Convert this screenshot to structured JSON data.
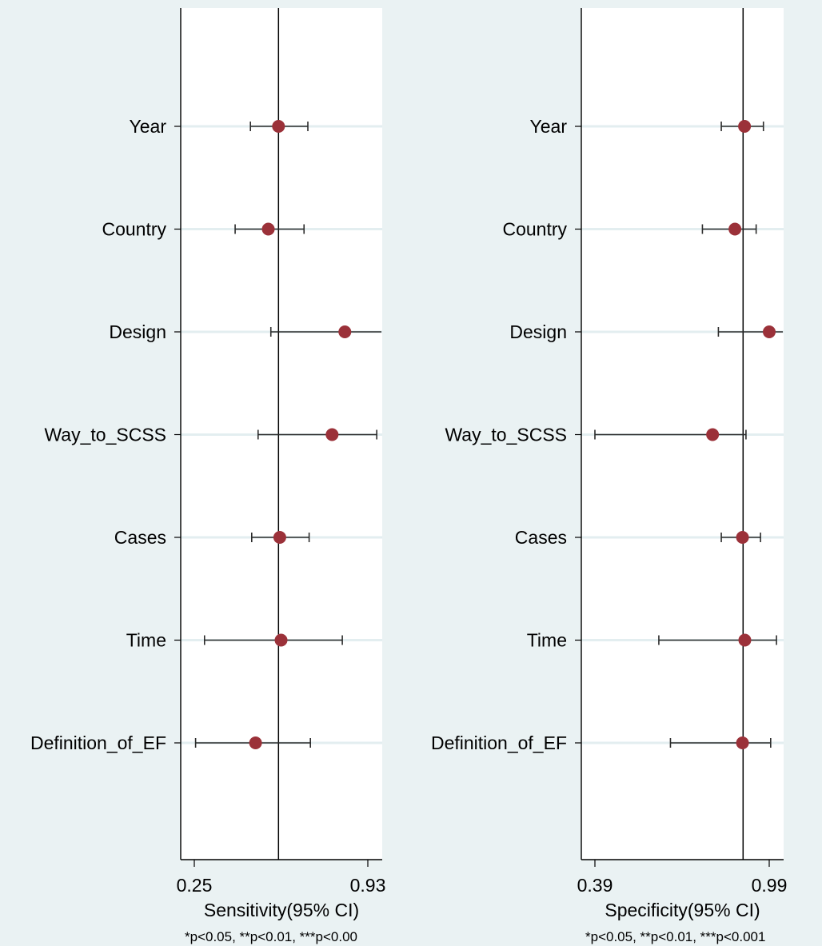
{
  "chart_data": [
    {
      "type": "scatter",
      "subtype": "forest-plot",
      "categories": [
        "Year",
        "Country",
        "Design",
        "Way_to_SCSS",
        "Cases",
        "Time",
        "Definition_of_EF"
      ],
      "estimates": [
        0.58,
        0.54,
        0.84,
        0.79,
        0.585,
        0.59,
        0.49
      ],
      "ci_lower": [
        0.47,
        0.41,
        0.55,
        0.5,
        0.475,
        0.29,
        0.255
      ],
      "ci_upper": [
        0.695,
        0.68,
        0.99,
        0.965,
        0.7,
        0.83,
        0.705
      ],
      "reference_line": 0.58,
      "xlim": [
        0.25,
        0.93
      ],
      "xticks": [
        "0.25",
        "0.93"
      ],
      "xlabel": "Sensitivity(95% CI)",
      "note": "*p<0.05, **p<0.01, ***p<0.00",
      "marker_color": "#9b3139",
      "grid": true
    },
    {
      "type": "scatter",
      "subtype": "forest-plot",
      "categories": [
        "Year",
        "Country",
        "Design",
        "Way_to_SCSS",
        "Cases",
        "Time",
        "Definition_of_EF"
      ],
      "estimates": [
        0.905,
        0.872,
        0.99,
        0.795,
        0.898,
        0.906,
        0.898
      ],
      "ci_lower": [
        0.825,
        0.76,
        0.815,
        0.39,
        0.825,
        0.61,
        0.65
      ],
      "ci_upper": [
        0.97,
        0.945,
        1.04,
        0.91,
        0.96,
        1.015,
        0.995
      ],
      "reference_line": 0.9,
      "xlim": [
        0.39,
        0.99
      ],
      "xticks": [
        "0.39",
        "0.99"
      ],
      "xlabel": "Specificity(95% CI)",
      "note": "*p<0.05, **p<0.01, ***p<0.001",
      "marker_color": "#9b3139",
      "grid": true
    }
  ]
}
